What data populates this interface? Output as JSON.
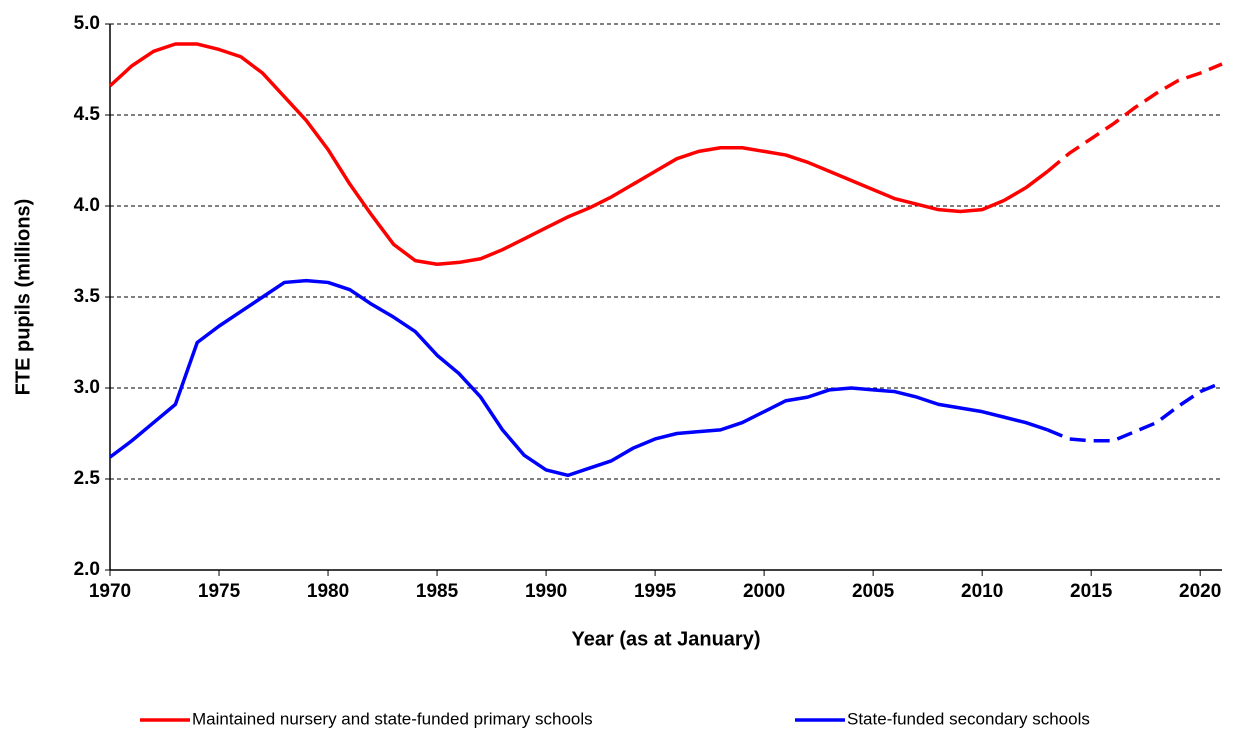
{
  "chart_data": {
    "type": "line",
    "y_label": "FTE pupils (millions)",
    "x_label": "Year (as at January)",
    "x": [
      1970,
      1971,
      1972,
      1973,
      1974,
      1975,
      1976,
      1977,
      1978,
      1979,
      1980,
      1981,
      1982,
      1983,
      1984,
      1985,
      1986,
      1987,
      1988,
      1989,
      1990,
      1991,
      1992,
      1993,
      1994,
      1995,
      1996,
      1997,
      1998,
      1999,
      2000,
      2001,
      2002,
      2003,
      2004,
      2005,
      2006,
      2007,
      2008,
      2009,
      2010,
      2011,
      2012,
      2013,
      2014,
      2015,
      2016,
      2017,
      2018,
      2019,
      2020,
      2021
    ],
    "series": [
      {
        "name": "Maintained nursery and state-funded primary schools",
        "color": "#ff0000",
        "values": [
          4.66,
          4.77,
          4.85,
          4.89,
          4.89,
          4.86,
          4.82,
          4.73,
          4.6,
          4.47,
          4.31,
          4.12,
          3.95,
          3.79,
          3.7,
          3.68,
          3.69,
          3.71,
          3.76,
          3.82,
          3.88,
          3.94,
          3.99,
          4.05,
          4.12,
          4.19,
          4.26,
          4.3,
          4.32,
          4.32,
          4.3,
          4.28,
          4.24,
          4.19,
          4.14,
          4.09,
          4.04,
          4.01,
          3.98,
          3.97,
          3.98,
          4.03,
          4.1,
          4.19,
          null,
          null,
          null,
          null,
          null,
          null,
          null,
          null
        ],
        "projected_values": [
          null,
          null,
          null,
          null,
          null,
          null,
          null,
          null,
          null,
          null,
          null,
          null,
          null,
          null,
          null,
          null,
          null,
          null,
          null,
          null,
          null,
          null,
          null,
          null,
          null,
          null,
          null,
          null,
          null,
          null,
          null,
          null,
          null,
          null,
          null,
          null,
          null,
          null,
          null,
          null,
          null,
          null,
          null,
          4.19,
          4.29,
          4.37,
          4.45,
          4.54,
          4.62,
          4.69,
          4.73,
          4.78
        ]
      },
      {
        "name": "State-funded secondary schools",
        "color": "#0000ff",
        "values": [
          2.62,
          2.71,
          2.81,
          2.91,
          3.25,
          3.34,
          3.42,
          3.5,
          3.58,
          3.59,
          3.58,
          3.54,
          3.46,
          3.39,
          3.31,
          3.18,
          3.08,
          2.95,
          2.77,
          2.63,
          2.55,
          2.52,
          2.56,
          2.6,
          2.67,
          2.72,
          2.75,
          2.76,
          2.77,
          2.81,
          2.87,
          2.93,
          2.95,
          2.99,
          3.0,
          2.99,
          2.98,
          2.95,
          2.91,
          2.89,
          2.87,
          2.84,
          2.81,
          2.77,
          null,
          null,
          null,
          null,
          null,
          null,
          null,
          null
        ],
        "projected_values": [
          null,
          null,
          null,
          null,
          null,
          null,
          null,
          null,
          null,
          null,
          null,
          null,
          null,
          null,
          null,
          null,
          null,
          null,
          null,
          null,
          null,
          null,
          null,
          null,
          null,
          null,
          null,
          null,
          null,
          null,
          null,
          null,
          null,
          null,
          null,
          null,
          null,
          null,
          null,
          null,
          null,
          null,
          null,
          2.77,
          2.72,
          2.71,
          2.71,
          2.76,
          2.81,
          2.9,
          2.98,
          3.03
        ]
      }
    ],
    "xlim": [
      1970,
      2021
    ],
    "xticks": [
      1970,
      1975,
      1980,
      1985,
      1990,
      1995,
      2000,
      2005,
      2010,
      2015,
      2020
    ],
    "ylim": [
      2,
      5
    ],
    "yticks": [
      {
        "value": 2,
        "label": "2.0"
      },
      {
        "value": 2.5,
        "label": "2.5"
      },
      {
        "value": 3,
        "label": "3.0"
      },
      {
        "value": 3.5,
        "label": "3.5"
      },
      {
        "value": 4,
        "label": "4.0"
      },
      {
        "value": 4.5,
        "label": "4.5"
      },
      {
        "value": 5,
        "label": "5.0"
      }
    ],
    "grid": true
  }
}
